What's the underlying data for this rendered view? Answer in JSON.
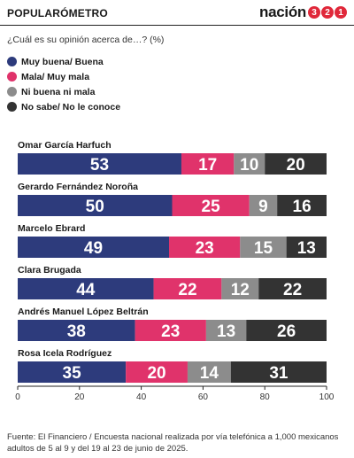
{
  "header": {
    "title": "POPULARÓMETRO",
    "brand_word": "nación",
    "brand_digits": [
      "3",
      "2",
      "1"
    ]
  },
  "question": "¿Cuál es su opinión acerca de…? (%)",
  "legend": [
    {
      "label": "Muy buena/ Buena",
      "color": "#2d3b7c"
    },
    {
      "label": "Mala/ Muy mala",
      "color": "#e0336b"
    },
    {
      "label": "Ni buena ni mala",
      "color": "#8c8c8c"
    },
    {
      "label": "No sabe/ No le conoce",
      "color": "#333333"
    }
  ],
  "chart_data": {
    "type": "bar",
    "orientation": "horizontal",
    "stacked": true,
    "categories": [
      "Omar García Harfuch",
      "Gerardo Fernández Noroña",
      "Marcelo Ebrard",
      "Clara Brugada",
      "Andrés Manuel López Beltrán",
      "Rosa Icela Rodríguez"
    ],
    "series": [
      {
        "name": "Muy buena/ Buena",
        "values": [
          53,
          50,
          49,
          44,
          38,
          35
        ],
        "color": "#2d3b7c"
      },
      {
        "name": "Mala/ Muy mala",
        "values": [
          17,
          25,
          23,
          22,
          23,
          20
        ],
        "color": "#e0336b"
      },
      {
        "name": "Ni buena ni mala",
        "values": [
          10,
          9,
          15,
          12,
          13,
          14
        ],
        "color": "#8c8c8c"
      },
      {
        "name": "No sabe/ No le conoce",
        "values": [
          20,
          16,
          13,
          22,
          26,
          31
        ],
        "color": "#333333"
      }
    ],
    "xlim": [
      0,
      100
    ],
    "xticks": [
      0,
      20,
      40,
      60,
      80,
      100
    ],
    "xlabel": "",
    "ylabel": "",
    "grid": false,
    "legend_position": "top-left"
  },
  "source": "Fuente: El Financiero / Encuesta nacional realizada por vía telefónica a 1,000 mexicanos adultos de 5 al 9 y del 19 al 23 de junio de 2025."
}
